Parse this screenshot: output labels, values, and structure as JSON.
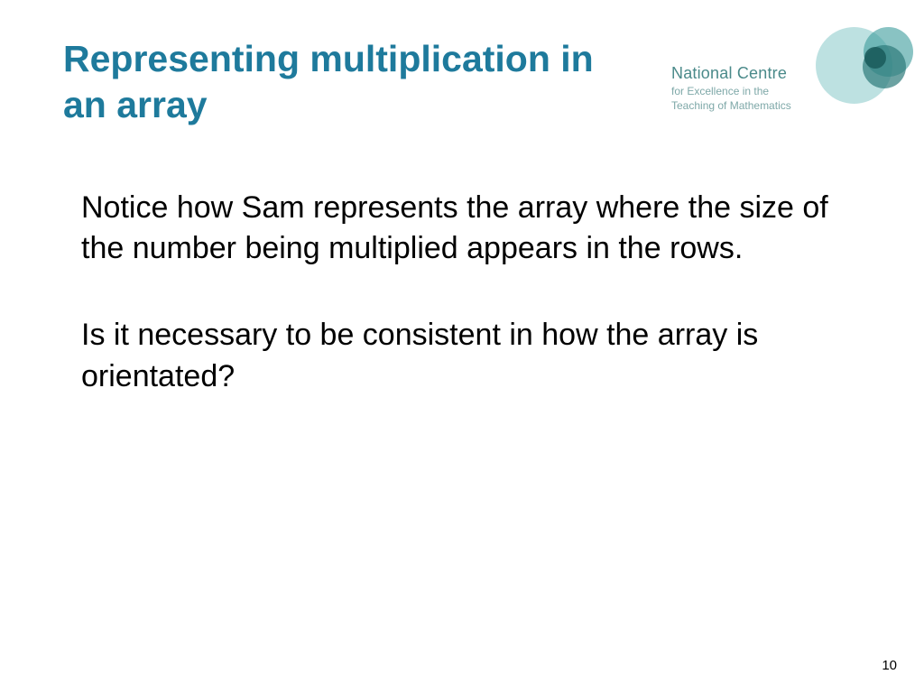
{
  "slide": {
    "title": "Representing multiplication in an array",
    "paragraphs": [
      "Notice how Sam represents the array where the size of the number being multiplied appears in the rows.",
      "Is it necessary to be consistent in how the array is orientated?"
    ],
    "pageNumber": "10"
  },
  "logo": {
    "main": "National Centre",
    "sub1": "for Excellence in the",
    "sub2": "Teaching of Mathematics"
  },
  "colors": {
    "titleColor": "#1e7a9c",
    "bodyColor": "#000000",
    "background": "#ffffff",
    "logoMainColor": "#4a8a8a",
    "logoSubColor": "#7ea8a8"
  },
  "typography": {
    "titleFontSize": 41,
    "bodyFontSize": 34,
    "fontFamily": "Arial"
  }
}
